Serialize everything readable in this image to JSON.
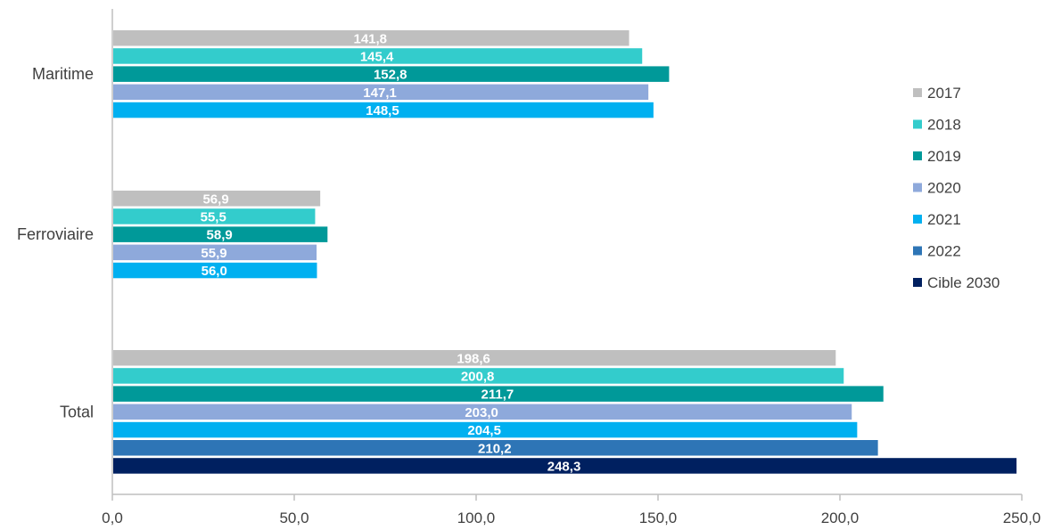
{
  "chart_data": {
    "type": "bar",
    "orientation": "horizontal",
    "categories": [
      "Maritime",
      "Ferroviaire",
      "Total"
    ],
    "xlim": [
      0,
      250
    ],
    "x_ticks": [
      "0,0",
      "50,0",
      "100,0",
      "150,0",
      "200,0",
      "250,0"
    ],
    "grid": false,
    "legend_position": "right",
    "series": [
      {
        "name": "2017",
        "color": "#BFBFBF",
        "values": [
          141.8,
          56.9,
          198.6
        ],
        "labels": [
          "141,8",
          "56,9",
          "198,6"
        ]
      },
      {
        "name": "2018",
        "color": "#33CCCC",
        "values": [
          145.4,
          55.5,
          200.8
        ],
        "labels": [
          "145,4",
          "55,5",
          "200,8"
        ]
      },
      {
        "name": "2019",
        "color": "#009999",
        "values": [
          152.8,
          58.9,
          211.7
        ],
        "labels": [
          "152,8",
          "58,9",
          "211,7"
        ]
      },
      {
        "name": "2020",
        "color": "#8EA9DB",
        "values": [
          147.1,
          55.9,
          203.0
        ],
        "labels": [
          "147,1",
          "55,9",
          "203,0"
        ]
      },
      {
        "name": "2021",
        "color": "#00B0F0",
        "values": [
          148.5,
          56.0,
          204.5
        ],
        "labels": [
          "148,5",
          "56,0",
          "204,5"
        ]
      },
      {
        "name": "2022",
        "color": "#2E75B6",
        "values": [
          null,
          null,
          210.2
        ],
        "labels": [
          "",
          "",
          "210,2"
        ]
      },
      {
        "name": "Cible 2030",
        "color": "#002060",
        "values": [
          null,
          null,
          248.3
        ],
        "labels": [
          "",
          "",
          "248,3"
        ]
      }
    ]
  }
}
